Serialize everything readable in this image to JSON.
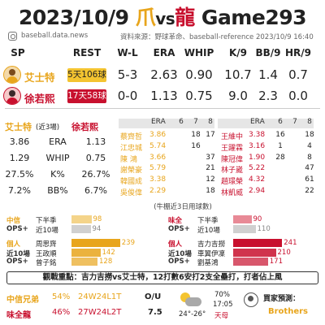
{
  "header": {
    "date": "2023/10/9",
    "team_left": "爪",
    "vs": "vs",
    "team_right": "龍",
    "game": "Game293",
    "site": "baseball.data.news",
    "source": "資料來源：野球革命、baseball-reference  2023/10/9  16:40"
  },
  "columns": [
    "SP",
    "REST",
    "W-L",
    "ERA",
    "WHIP",
    "K/9",
    "BB/9",
    "HR/9"
  ],
  "pitchers": [
    {
      "name": "艾士特",
      "rest": "5天106球",
      "wl": "5-3",
      "era": "2.63",
      "whip": "0.90",
      "k9": "10.7",
      "bb9": "1.4",
      "hr9": "0.7",
      "color": "#e8a51c"
    },
    {
      "name": "徐若熙",
      "rest": "17天58球",
      "wl": "0-0",
      "era": "1.13",
      "whip": "0.75",
      "k9": "9.0",
      "bb9": "2.3",
      "hr9": "0.0",
      "color": "#c8102e"
    }
  ],
  "recent": {
    "left_name": "艾士特",
    "mid_label": "(近3場)",
    "right_name": "徐若熙",
    "rows": [
      {
        "l": "3.86",
        "m": "ERA",
        "r": "1.13"
      },
      {
        "l": "1.29",
        "m": "WHIP",
        "r": "0.75"
      },
      {
        "l": "27.5%",
        "m": "K%",
        "r": "26.7%"
      },
      {
        "l": "7.2%",
        "m": "BB%",
        "r": "6.7%"
      }
    ]
  },
  "bullpen": {
    "head_label": "ERA",
    "days": [
      "6",
      "7",
      "8"
    ],
    "left": [
      {
        "name": "蔡齊哲",
        "era": "3.86",
        "d6": "",
        "d7": "18",
        "d8": "17"
      },
      {
        "name": "江忠城",
        "era": "5.74",
        "d6": "",
        "d7": "16",
        "d8": ""
      },
      {
        "name": "陳 鴻",
        "era": "3.66",
        "d6": "",
        "d7": "",
        "d8": "37"
      },
      {
        "name": "謝榮豪",
        "era": "5.79",
        "d6": "",
        "d7": "",
        "d8": "21"
      },
      {
        "name": "韓國成",
        "era": "3.38",
        "d6": "",
        "d7": "",
        "d8": "12"
      },
      {
        "name": "吳俊偉",
        "era": "2.29",
        "d6": "",
        "d7": "",
        "d8": "18"
      }
    ],
    "right": [
      {
        "name": "王維中",
        "era": "3.38",
        "d6": "16",
        "d7": "",
        "d8": "18"
      },
      {
        "name": "王躍霖",
        "era": "3.16",
        "d6": "1",
        "d7": "",
        "d8": "4"
      },
      {
        "name": "陳冠偉",
        "era": "1.90",
        "d6": "28",
        "d7": "",
        "d8": "8"
      },
      {
        "name": "林子崴",
        "era": "5.22",
        "d6": "",
        "d7": "",
        "d8": "47"
      },
      {
        "name": "趙璟榮",
        "era": "4.32",
        "d6": "",
        "d7": "",
        "d8": "61"
      },
      {
        "name": "林凱威",
        "era": "2.94",
        "d6": "",
        "d7": "",
        "d8": "22"
      }
    ],
    "legend": "(牛棚近3日用球數)"
  },
  "ops": {
    "left_team": "中信",
    "right_team": "味全",
    "left_rows": [
      {
        "a": "中信",
        "b": "下半季",
        "value": 98,
        "type": "team"
      },
      {
        "a": "OPS+",
        "b": "近10場",
        "value": 94,
        "type": "team2"
      },
      {
        "a": "個人",
        "b": "周思齊",
        "value": 239,
        "type": "p1"
      },
      {
        "a": "近10場",
        "b": "王政順",
        "value": 142,
        "type": "p2"
      },
      {
        "a": "OPS+",
        "b": "曾子銘",
        "value": 128,
        "type": "p3"
      }
    ],
    "right_rows": [
      {
        "a": "味全",
        "b": "下半季",
        "value": 90,
        "type": "team"
      },
      {
        "a": "OPS+",
        "b": "近10場",
        "value": 110,
        "type": "team2"
      },
      {
        "a": "個人",
        "b": "吉力吉撈",
        "value": 241,
        "type": "p1"
      },
      {
        "a": "近10場",
        "b": "車翼伊凜",
        "value": 210,
        "type": "p2"
      },
      {
        "a": "OPS+",
        "b": "劉基鴻",
        "value": 171,
        "type": "p3"
      }
    ]
  },
  "focus": "觀戰重點：吉力吉撈vs艾士特，12打數6安打2支全壘打，打者佔上風",
  "odds": [
    {
      "team": "中信兄弟",
      "pct": "54%",
      "record": "24W24L1T",
      "color": "#e8a51c"
    },
    {
      "team": "味全龍",
      "pct": "46%",
      "record": "27W24L2T",
      "color": "#c8102e"
    }
  ],
  "ou": {
    "label": "O/U",
    "value": "7.5"
  },
  "weather": {
    "temp": "24°-26°",
    "humidity": "70%",
    "time": "17:05",
    "condition": "天母"
  },
  "prediction": {
    "label": "買家預測：",
    "pick": "Brothers"
  },
  "colors": {
    "elephant": "#e8a51c",
    "dragon": "#c8102e"
  }
}
